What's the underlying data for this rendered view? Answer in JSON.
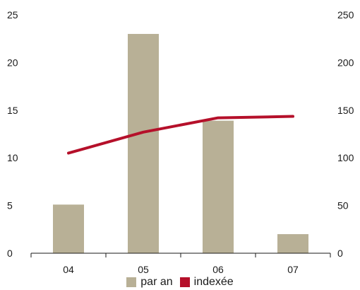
{
  "chart_data": {
    "type": "bar+line",
    "categories": [
      "04",
      "05",
      "06",
      "07"
    ],
    "series": [
      {
        "name": "par an",
        "type": "bar",
        "axis": "left",
        "color": "#b8b096",
        "values": [
          5.1,
          23.0,
          13.9,
          2.0
        ]
      },
      {
        "name": "indexée",
        "type": "line",
        "axis": "right",
        "color": "#b5102a",
        "values": [
          105,
          127,
          142,
          143.5
        ]
      }
    ],
    "y_left": {
      "min": 0,
      "max": 25,
      "ticks": [
        "0",
        "5",
        "10",
        "15",
        "20",
        "25"
      ]
    },
    "y_right": {
      "min": 0,
      "max": 250,
      "ticks": [
        "0",
        "50",
        "100",
        "150",
        "200",
        "250"
      ]
    },
    "grid": false,
    "legend_position": "bottom"
  }
}
